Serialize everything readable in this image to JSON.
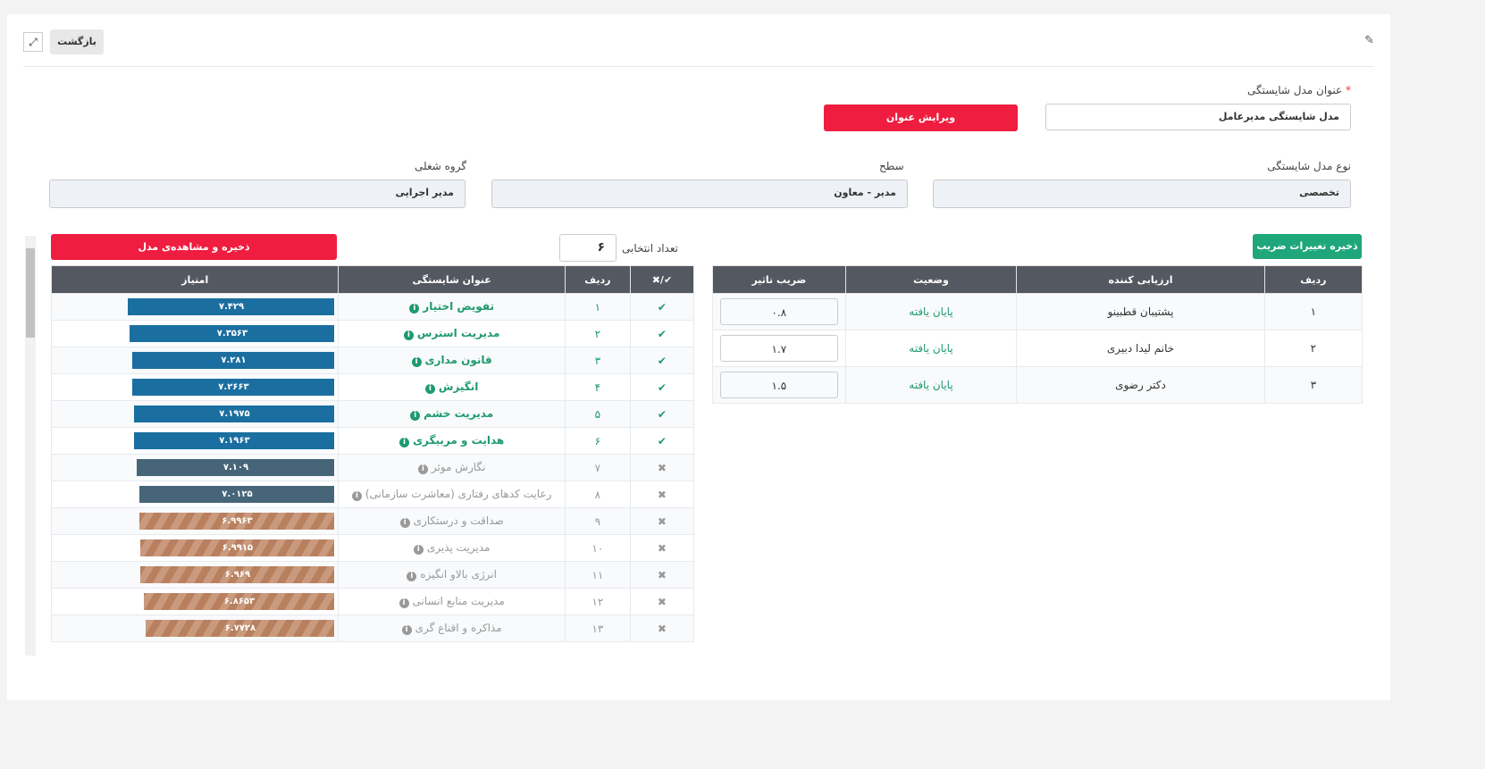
{
  "header": {
    "back_label": "بازگشت",
    "expand_icon": "expand-icon",
    "edit_icon": "edit-icon"
  },
  "form": {
    "title_label": "عنوان مدل شایستگی",
    "required_mark": "*",
    "title_value": "مدل شایستگی مدیرعامل",
    "edit_title_button": "ویرایش عنوان",
    "type_label": "نوع مدل شایستگی",
    "type_value": "تخصصی",
    "level_label": "سطح",
    "level_value": "مدیر - معاون",
    "group_label": "گروه شغلی",
    "group_value": "مدیر اجرایی"
  },
  "evaluators": {
    "save_button": "ذخیره تغییرات ضریب",
    "headers": [
      "ردیف",
      "ارزیابی کننده",
      "وضعیت",
      "ضریب تاثیر"
    ],
    "rows": [
      {
        "row": "۱",
        "name": "پشتیبان قطبینو",
        "status": "پایان یافته",
        "coef": "۰.۸"
      },
      {
        "row": "۲",
        "name": "خانم لیدا دبیری",
        "status": "پایان یافته",
        "coef": "۱.۷"
      },
      {
        "row": "۳",
        "name": "دکتر رضوی",
        "status": "پایان یافته",
        "coef": "۱.۵"
      }
    ]
  },
  "competencies": {
    "count_label": "تعداد انتخابی",
    "count_value": "۶",
    "save_button": "ذخیره و مشاهده‌ی مدل",
    "headers": [
      "✔/✖",
      "ردیف",
      "عنوان شایستگی",
      "امتیاز"
    ],
    "colors": {
      "selected": "#1b6fa0",
      "unselected_dark": "#466579",
      "unselected_striped": "#b8805f"
    },
    "rows": [
      {
        "selected": true,
        "row": "۱",
        "title": "تفویض اختیار",
        "score": "۷.۴۲۹",
        "value": 7.429,
        "style": "selected"
      },
      {
        "selected": true,
        "row": "۲",
        "title": "مدیریت استرس",
        "score": "۷.۳۵۶۳",
        "value": 7.3563,
        "style": "selected"
      },
      {
        "selected": true,
        "row": "۳",
        "title": "قانون مداری",
        "score": "۷.۲۸۱",
        "value": 7.281,
        "style": "selected"
      },
      {
        "selected": true,
        "row": "۴",
        "title": "انگیزش",
        "score": "۷.۲۶۶۳",
        "value": 7.2663,
        "style": "selected"
      },
      {
        "selected": true,
        "row": "۵",
        "title": "مدیریت خشم",
        "score": "۷.۱۹۷۵",
        "value": 7.1975,
        "style": "selected"
      },
      {
        "selected": true,
        "row": "۶",
        "title": "هدایت و مربیگری",
        "score": "۷.۱۹۶۳",
        "value": 7.1963,
        "style": "selected"
      },
      {
        "selected": false,
        "row": "۷",
        "title": "نگارش موثر",
        "score": "۷.۱۰۹",
        "value": 7.109,
        "style": "dark"
      },
      {
        "selected": false,
        "row": "۸",
        "title": "رعایت کدهای رفتاری (معاشرت سازمانی)",
        "score": "۷.۰۱۲۵",
        "value": 7.0125,
        "style": "dark"
      },
      {
        "selected": false,
        "row": "۹",
        "title": "صداقت و درستکاری",
        "score": "۶.۹۹۶۳",
        "value": 6.9963,
        "style": "striped"
      },
      {
        "selected": false,
        "row": "۱۰",
        "title": "مدیریت پذیری",
        "score": "۶.۹۹۱۵",
        "value": 6.9915,
        "style": "striped"
      },
      {
        "selected": false,
        "row": "۱۱",
        "title": "انرژی بالاو انگیزه",
        "score": "۶.۹۶۹",
        "value": 6.969,
        "style": "striped"
      },
      {
        "selected": false,
        "row": "۱۲",
        "title": "مدیریت منابع انسانی",
        "score": "۶.۸۶۵۳",
        "value": 6.8653,
        "style": "striped"
      },
      {
        "selected": false,
        "row": "۱۳",
        "title": "مذاکره و اقناع گری",
        "score": "۶.۷۷۲۸",
        "value": 6.7728,
        "style": "striped"
      }
    ]
  }
}
